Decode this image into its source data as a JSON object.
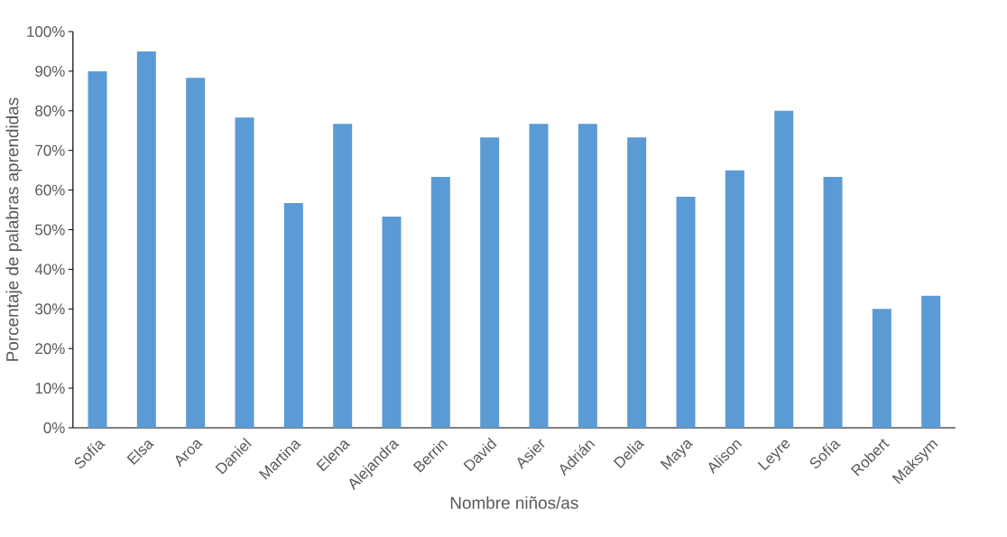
{
  "chart_data": {
    "type": "bar",
    "xlabel": "Nombre niños/as",
    "ylabel": "Porcentaje de palabras aprendidas",
    "categories": [
      "Sofía",
      "Elsa",
      "Aroa",
      "Daniel",
      "Martina",
      "Elena",
      "Alejandra",
      "Berrin",
      "David",
      "Asier",
      "Adrián",
      "Delia",
      "Maya",
      "Alison",
      "Leyre",
      "Sofía",
      "Robert",
      "Maksym"
    ],
    "values": [
      90,
      95,
      88.3,
      78.3,
      56.7,
      76.7,
      53.3,
      63.3,
      73.3,
      76.7,
      76.7,
      73.3,
      58.3,
      65,
      80,
      63.3,
      30,
      33.3
    ],
    "color": "#5b9bd5",
    "ylim": [
      0,
      100
    ],
    "yticks": [
      {
        "value": 0,
        "label": "0%"
      },
      {
        "value": 10,
        "label": "10%"
      },
      {
        "value": 20,
        "label": "20%"
      },
      {
        "value": 30,
        "label": "30%"
      },
      {
        "value": 40,
        "label": "40%"
      },
      {
        "value": 50,
        "label": "50%"
      },
      {
        "value": 60,
        "label": "60%"
      },
      {
        "value": 70,
        "label": "70%"
      },
      {
        "value": 80,
        "label": "80%"
      },
      {
        "value": 90,
        "label": "90%"
      },
      {
        "value": 100,
        "label": "100%"
      }
    ],
    "grid": false
  }
}
